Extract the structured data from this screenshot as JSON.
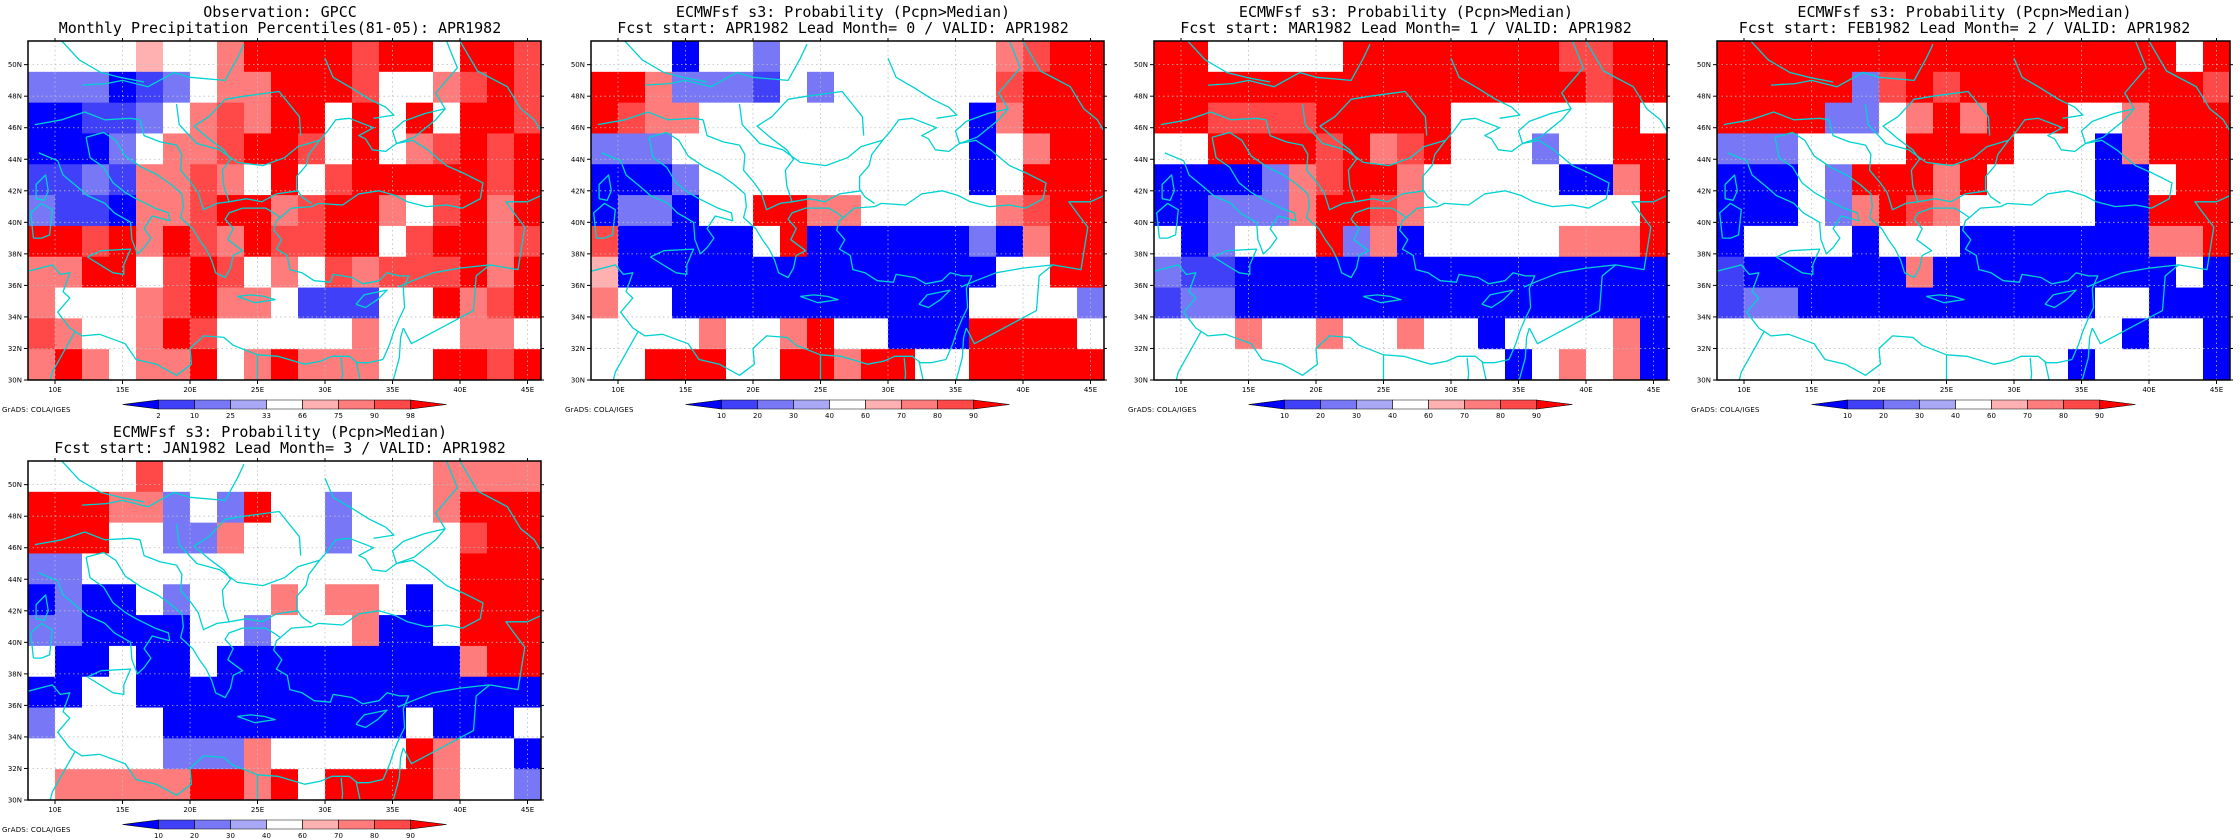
{
  "credit_text": "GrADS: COLA/IGES",
  "colors": {
    "coast": "#00d2d2",
    "grid": "#bdbdbd",
    "border": "#000000",
    "scale": [
      "#0000ff",
      "#4040f8",
      "#7878f6",
      "#a8a8f6",
      "#ffffff",
      "#ffb0b0",
      "#ff7c7c",
      "#ff4848",
      "#ff0000"
    ]
  },
  "panels": [
    {
      "title1": "Observation: GPCC",
      "title2": "Monthly Precipitation Percentiles(81-05): APR1982",
      "colorbar_labels": [
        "2",
        "10",
        "25",
        "33",
        "66",
        "75",
        "90",
        "98"
      ]
    },
    {
      "title1": "ECMWFsf s3: Probability (Pcpn>Median)",
      "title2": "Fcst start: APR1982  Lead Month= 0 / VALID: APR1982",
      "colorbar_labels": [
        "10",
        "20",
        "30",
        "40",
        "60",
        "70",
        "80",
        "90"
      ]
    },
    {
      "title1": "ECMWFsf s3: Probability (Pcpn>Median)",
      "title2": "Fcst start: MAR1982  Lead Month= 1 / VALID: APR1982",
      "colorbar_labels": [
        "10",
        "20",
        "30",
        "40",
        "60",
        "70",
        "80",
        "90"
      ]
    },
    {
      "title1": "ECMWFsf s3: Probability (Pcpn>Median)",
      "title2": "Fcst start: FEB1982  Lead Month= 2 / VALID: APR1982",
      "colorbar_labels": [
        "10",
        "20",
        "30",
        "40",
        "60",
        "70",
        "80",
        "90"
      ]
    },
    {
      "title1": "ECMWFsf s3: Probability (Pcpn>Median)",
      "title2": "Fcst start: JAN1982  Lead Month= 3 / VALID: APR1982",
      "colorbar_labels": [
        "10",
        "20",
        "30",
        "40",
        "60",
        "70",
        "80",
        "90"
      ]
    }
  ],
  "chart_data": {
    "type": "heatmap",
    "lon_range": [
      8,
      46
    ],
    "lat_range": [
      30,
      51.5
    ],
    "lon_ticks": [
      "10E",
      "15E",
      "20E",
      "25E",
      "30E",
      "35E",
      "40E",
      "45E"
    ],
    "lat_ticks": [
      "30N",
      "32N",
      "34N",
      "36N",
      "38N",
      "40N",
      "42N",
      "44N",
      "46N",
      "48N",
      "50N"
    ],
    "cell_size_deg": 2,
    "grid_note_values": "class index per cell (0 = lowest/blue ... 4 = white ... 8 = highest/red), rows from 51N to 30N, columns from 8E to 46E",
    "grids": [
      [
        [
          4,
          4,
          4,
          4,
          5,
          4,
          4,
          6,
          8,
          8,
          8,
          8,
          7,
          8,
          8,
          4,
          8,
          8,
          7
        ],
        [
          2,
          2,
          2,
          0,
          1,
          2,
          4,
          6,
          6,
          8,
          8,
          8,
          7,
          4,
          4,
          6,
          7,
          8,
          7
        ],
        [
          0,
          0,
          1,
          1,
          2,
          4,
          6,
          7,
          6,
          8,
          8,
          4,
          8,
          4,
          8,
          4,
          8,
          8,
          7
        ],
        [
          0,
          0,
          0,
          2,
          4,
          6,
          6,
          7,
          8,
          8,
          7,
          4,
          8,
          4,
          6,
          7,
          8,
          7,
          8
        ],
        [
          1,
          1,
          2,
          1,
          6,
          6,
          7,
          6,
          4,
          8,
          4,
          7,
          8,
          8,
          8,
          8,
          8,
          7,
          8
        ],
        [
          2,
          1,
          1,
          0,
          6,
          6,
          7,
          8,
          8,
          6,
          7,
          8,
          8,
          6,
          4,
          7,
          8,
          6,
          8
        ],
        [
          8,
          8,
          7,
          8,
          6,
          8,
          7,
          6,
          8,
          7,
          7,
          8,
          8,
          4,
          7,
          8,
          8,
          6,
          7
        ],
        [
          6,
          6,
          8,
          8,
          4,
          7,
          8,
          7,
          4,
          6,
          4,
          7,
          6,
          7,
          7,
          7,
          8,
          6,
          8
        ],
        [
          6,
          4,
          4,
          4,
          6,
          7,
          8,
          6,
          6,
          4,
          1,
          1,
          1,
          4,
          4,
          8,
          6,
          7,
          8
        ],
        [
          7,
          6,
          4,
          4,
          6,
          8,
          7,
          4,
          4,
          4,
          4,
          4,
          6,
          4,
          4,
          4,
          6,
          6,
          4
        ],
        [
          6,
          8,
          6,
          4,
          6,
          6,
          8,
          4,
          6,
          8,
          6,
          6,
          6,
          4,
          4,
          8,
          8,
          7,
          8
        ]
      ],
      [
        [
          4,
          4,
          4,
          0,
          4,
          4,
          2,
          4,
          4,
          4,
          4,
          4,
          4,
          4,
          4,
          6,
          7,
          8,
          8
        ],
        [
          8,
          8,
          6,
          2,
          2,
          2,
          1,
          4,
          2,
          4,
          4,
          4,
          4,
          4,
          4,
          7,
          8,
          8,
          8
        ],
        [
          8,
          7,
          6,
          6,
          4,
          4,
          4,
          4,
          4,
          4,
          4,
          4,
          4,
          4,
          0,
          6,
          8,
          8,
          8
        ],
        [
          2,
          2,
          2,
          4,
          4,
          4,
          4,
          4,
          4,
          4,
          4,
          4,
          4,
          4,
          0,
          4,
          6,
          8,
          8
        ],
        [
          0,
          0,
          0,
          2,
          4,
          4,
          4,
          4,
          4,
          4,
          4,
          4,
          4,
          4,
          0,
          4,
          8,
          8,
          8
        ],
        [
          0,
          2,
          2,
          0,
          4,
          4,
          8,
          8,
          6,
          6,
          4,
          4,
          4,
          4,
          4,
          6,
          7,
          8,
          8
        ],
        [
          7,
          0,
          0,
          0,
          0,
          0,
          4,
          8,
          0,
          0,
          0,
          0,
          0,
          0,
          2,
          0,
          6,
          8,
          8
        ],
        [
          5,
          0,
          0,
          0,
          0,
          0,
          0,
          0,
          0,
          0,
          0,
          0,
          0,
          0,
          0,
          4,
          4,
          8,
          8
        ],
        [
          6,
          4,
          4,
          0,
          0,
          0,
          0,
          0,
          0,
          0,
          0,
          0,
          0,
          0,
          4,
          4,
          4,
          4,
          2
        ],
        [
          4,
          4,
          4,
          4,
          6,
          4,
          4,
          6,
          8,
          4,
          4,
          0,
          0,
          0,
          8,
          8,
          8,
          8,
          4
        ],
        [
          4,
          4,
          8,
          8,
          8,
          4,
          4,
          8,
          8,
          6,
          8,
          8,
          4,
          4,
          8,
          8,
          8,
          8,
          8
        ]
      ],
      [
        [
          8,
          8,
          4,
          4,
          4,
          4,
          4,
          8,
          8,
          8,
          8,
          8,
          8,
          8,
          8,
          7,
          7,
          8,
          8
        ],
        [
          8,
          8,
          8,
          8,
          8,
          8,
          8,
          8,
          8,
          8,
          8,
          8,
          8,
          8,
          8,
          8,
          7,
          8,
          8
        ],
        [
          8,
          8,
          7,
          7,
          7,
          7,
          8,
          8,
          8,
          8,
          8,
          4,
          4,
          4,
          4,
          4,
          4,
          8,
          4
        ],
        [
          4,
          4,
          8,
          8,
          8,
          8,
          7,
          8,
          6,
          7,
          8,
          4,
          4,
          4,
          2,
          4,
          4,
          8,
          8
        ],
        [
          0,
          0,
          0,
          0,
          2,
          6,
          7,
          8,
          8,
          6,
          4,
          4,
          4,
          4,
          4,
          0,
          0,
          6,
          8
        ],
        [
          0,
          0,
          2,
          2,
          2,
          6,
          8,
          8,
          7,
          6,
          4,
          4,
          4,
          4,
          4,
          4,
          4,
          4,
          8
        ],
        [
          4,
          0,
          2,
          4,
          4,
          4,
          8,
          2,
          6,
          0,
          4,
          4,
          4,
          4,
          4,
          6,
          6,
          6,
          8
        ],
        [
          2,
          1,
          1,
          0,
          0,
          0,
          0,
          0,
          0,
          0,
          0,
          0,
          0,
          0,
          0,
          0,
          0,
          0,
          0
        ],
        [
          1,
          2,
          2,
          0,
          0,
          0,
          0,
          0,
          0,
          0,
          0,
          0,
          0,
          0,
          0,
          0,
          0,
          0,
          0
        ],
        [
          4,
          4,
          4,
          6,
          4,
          4,
          6,
          4,
          4,
          6,
          4,
          4,
          0,
          4,
          4,
          4,
          4,
          6,
          0
        ],
        [
          4,
          4,
          4,
          4,
          4,
          4,
          4,
          4,
          4,
          4,
          4,
          4,
          4,
          0,
          4,
          6,
          4,
          6,
          0
        ]
      ],
      [
        [
          8,
          8,
          8,
          8,
          8,
          8,
          8,
          8,
          8,
          8,
          8,
          8,
          8,
          8,
          8,
          8,
          8,
          4,
          8
        ],
        [
          8,
          8,
          8,
          8,
          8,
          2,
          7,
          8,
          7,
          8,
          8,
          8,
          8,
          8,
          8,
          8,
          8,
          8,
          7
        ],
        [
          8,
          8,
          8,
          8,
          2,
          2,
          4,
          6,
          8,
          6,
          8,
          8,
          8,
          4,
          4,
          6,
          8,
          8,
          8
        ],
        [
          2,
          2,
          2,
          4,
          4,
          4,
          4,
          8,
          8,
          8,
          8,
          4,
          4,
          4,
          0,
          6,
          8,
          8,
          8
        ],
        [
          0,
          0,
          0,
          4,
          2,
          8,
          8,
          8,
          6,
          8,
          4,
          4,
          4,
          4,
          0,
          0,
          4,
          8,
          8
        ],
        [
          0,
          0,
          0,
          4,
          2,
          6,
          8,
          7,
          6,
          4,
          4,
          4,
          4,
          4,
          0,
          0,
          8,
          8,
          8
        ],
        [
          0,
          4,
          4,
          4,
          4,
          0,
          4,
          4,
          4,
          0,
          0,
          0,
          0,
          0,
          0,
          0,
          6,
          6,
          8
        ],
        [
          1,
          0,
          0,
          0,
          0,
          0,
          0,
          6,
          0,
          0,
          0,
          0,
          0,
          0,
          0,
          0,
          0,
          4,
          0
        ],
        [
          1,
          2,
          2,
          0,
          0,
          0,
          0,
          0,
          0,
          0,
          0,
          0,
          0,
          0,
          4,
          4,
          0,
          0,
          0
        ],
        [
          4,
          4,
          4,
          4,
          4,
          4,
          4,
          4,
          4,
          4,
          4,
          4,
          4,
          4,
          4,
          0,
          4,
          4,
          0
        ],
        [
          4,
          4,
          4,
          4,
          4,
          4,
          4,
          4,
          4,
          4,
          4,
          4,
          4,
          0,
          4,
          4,
          4,
          4,
          0
        ]
      ],
      [
        [
          4,
          4,
          4,
          4,
          7,
          4,
          4,
          4,
          4,
          4,
          4,
          4,
          4,
          4,
          4,
          6,
          6,
          6,
          6
        ],
        [
          8,
          8,
          8,
          6,
          6,
          2,
          4,
          2,
          8,
          4,
          4,
          2,
          4,
          4,
          4,
          6,
          8,
          8,
          8
        ],
        [
          8,
          8,
          8,
          4,
          4,
          2,
          2,
          6,
          4,
          4,
          4,
          2,
          4,
          4,
          4,
          4,
          7,
          8,
          8
        ],
        [
          2,
          2,
          4,
          4,
          4,
          4,
          4,
          4,
          4,
          4,
          4,
          4,
          4,
          4,
          4,
          4,
          8,
          8,
          8
        ],
        [
          0,
          2,
          0,
          0,
          4,
          2,
          4,
          4,
          4,
          6,
          4,
          6,
          6,
          4,
          0,
          4,
          8,
          8,
          8
        ],
        [
          2,
          2,
          0,
          0,
          0,
          0,
          4,
          4,
          2,
          4,
          4,
          4,
          6,
          0,
          0,
          4,
          8,
          8,
          8
        ],
        [
          4,
          0,
          0,
          4,
          0,
          0,
          4,
          0,
          0,
          0,
          0,
          0,
          0,
          0,
          0,
          0,
          6,
          8,
          8
        ],
        [
          0,
          0,
          4,
          4,
          0,
          0,
          0,
          0,
          0,
          0,
          0,
          0,
          0,
          0,
          0,
          0,
          0,
          0,
          0
        ],
        [
          2,
          4,
          4,
          4,
          4,
          0,
          0,
          0,
          0,
          0,
          0,
          0,
          0,
          0,
          4,
          0,
          0,
          0,
          4
        ],
        [
          4,
          4,
          4,
          4,
          4,
          2,
          2,
          2,
          6,
          4,
          4,
          4,
          4,
          4,
          8,
          6,
          4,
          4,
          0
        ],
        [
          4,
          6,
          6,
          6,
          6,
          6,
          8,
          8,
          6,
          8,
          4,
          8,
          8,
          8,
          8,
          6,
          4,
          4,
          2
        ]
      ]
    ]
  }
}
